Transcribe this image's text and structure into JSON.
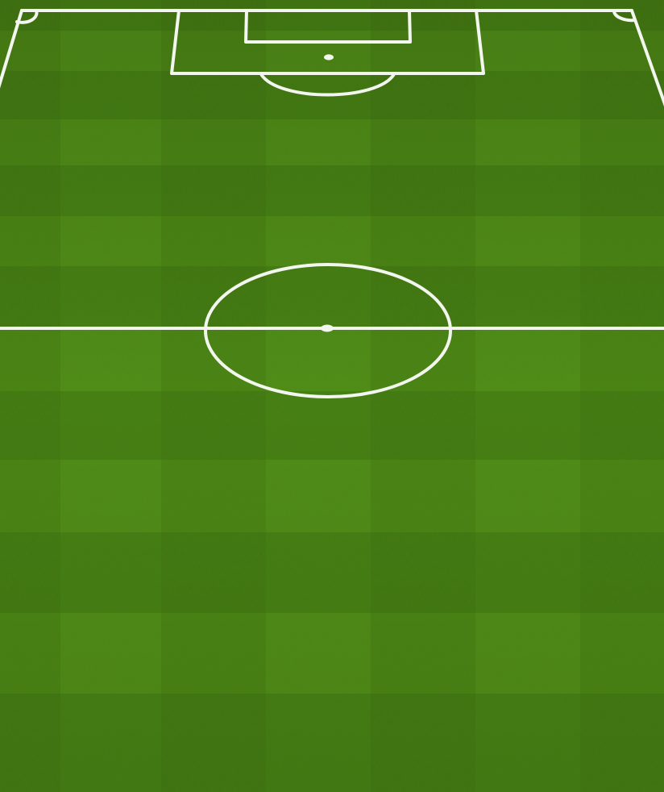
{
  "scene": {
    "type": "football-pitch",
    "view": "half-pitch-top-down-perspective"
  },
  "colors": {
    "grass_light": "#4f8e14",
    "grass_mid": "#447f10",
    "grass_dark": "#386b0c",
    "line": "#f3f6ef"
  }
}
